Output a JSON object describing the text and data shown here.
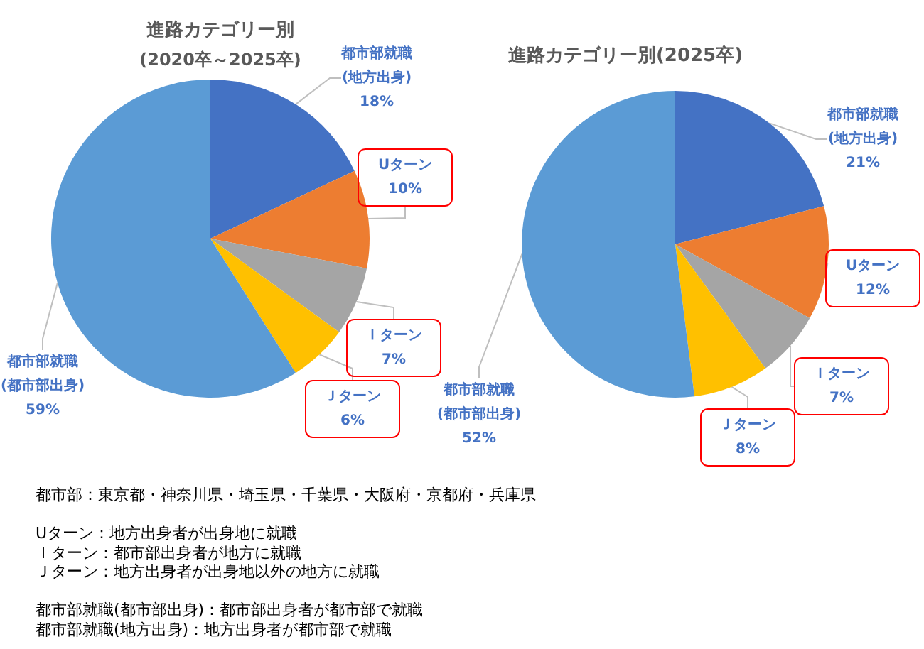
{
  "chart_data": [
    {
      "type": "pie",
      "title": "進路カテゴリー別",
      "subtitle": "(2020卒～2025卒)",
      "categories": [
        "都市部就職\n(地方出身)",
        "Uターン",
        "Ｉターン",
        "Ｊターン",
        "都市部就職\n(都市部出身)"
      ],
      "values": [
        18,
        10,
        7,
        6,
        59
      ],
      "value_labels": [
        "18%",
        "10%",
        "7%",
        "6%",
        "59%"
      ],
      "colors": [
        "#4472c4",
        "#ed7d31",
        "#a5a5a5",
        "#ffc000",
        "#5b9bd5"
      ]
    },
    {
      "type": "pie",
      "title": "進路カテゴリー別(2025卒)",
      "categories": [
        "都市部就職\n(地方出身)",
        "Uターン",
        "Ｉターン",
        "Ｊターン",
        "都市部就職\n(都市部出身)"
      ],
      "values": [
        21,
        12,
        7,
        8,
        52
      ],
      "value_labels": [
        "21%",
        "12%",
        "7%",
        "8%",
        "52%"
      ],
      "colors": [
        "#4472c4",
        "#ed7d31",
        "#a5a5a5",
        "#ffc000",
        "#5b9bd5"
      ]
    },
    {
      "type": "other",
      "annotations": [
        "都市部：東京都・神奈川県・埼玉県・千葉県・大阪府・京都府・兵庫県",
        "Uターン：地方出身者が出身地に就職",
        "Ｉターン：都市部出身者が地方に就職",
        "Ｊターン：地方出身者が出身地以外の地方に就職",
        "都市部就職(都市部出身)：都市部出身者が都市部で就職",
        "都市部就職(地方出身)：地方出身者が都市部で就職"
      ]
    }
  ]
}
